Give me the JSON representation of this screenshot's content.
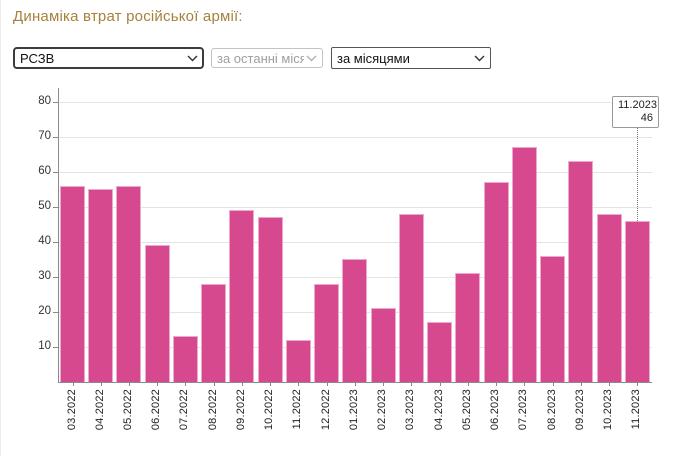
{
  "page": {
    "title": "Динаміка втрат російської армії:"
  },
  "filters": {
    "weapon_select": {
      "value": "РСЗВ"
    },
    "period_select": {
      "value": "за останні місяці"
    },
    "grouping_select": {
      "value": "за місяцями"
    }
  },
  "chart_data": {
    "type": "bar",
    "title": "Динаміка втрат російської армії: РСЗВ за місяцями",
    "categories": [
      "03.2022",
      "04.2022",
      "05.2022",
      "06.2022",
      "07.2022",
      "08.2022",
      "09.2022",
      "10.2022",
      "11.2022",
      "12.2022",
      "01.2023",
      "02.2023",
      "03.2023",
      "04.2023",
      "05.2023",
      "06.2023",
      "07.2023",
      "08.2023",
      "09.2023",
      "10.2023",
      "11.2023"
    ],
    "values": [
      56,
      55,
      56,
      39,
      13,
      28,
      49,
      47,
      12,
      28,
      35,
      21,
      48,
      17,
      31,
      57,
      67,
      36,
      63,
      48,
      46
    ],
    "xlabel": "",
    "ylabel": "",
    "ylim": [
      0,
      80
    ],
    "yticks": [
      10,
      20,
      30,
      40,
      50,
      60,
      70,
      80
    ],
    "grid": true,
    "legend": "none",
    "bar_color": "#d6498f",
    "bar_border_color": "#eba9cd",
    "tooltip": {
      "label": "11.2023",
      "value": "46"
    }
  }
}
